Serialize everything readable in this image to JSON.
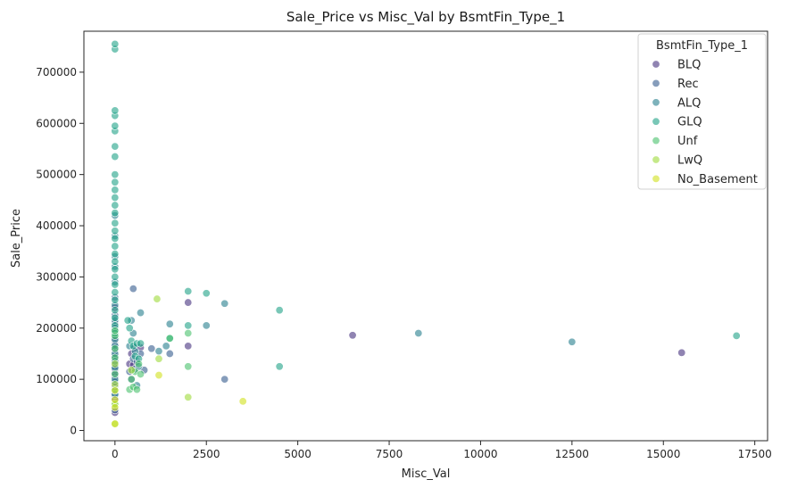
{
  "chart_data": {
    "type": "scatter",
    "title": "Sale_Price vs Misc_Val by BsmtFin_Type_1",
    "xlabel": "Misc_Val",
    "ylabel": "Sale_Price",
    "xlim": [
      -850,
      17850
    ],
    "ylim": [
      -20000,
      780000
    ],
    "xticks": [
      0,
      2500,
      5000,
      7500,
      10000,
      12500,
      15000,
      17500
    ],
    "xtick_labels": [
      "0",
      "2500",
      "5000",
      "7500",
      "10000",
      "12500",
      "15000",
      "17500"
    ],
    "yticks": [
      0,
      100000,
      200000,
      300000,
      400000,
      500000,
      600000,
      700000
    ],
    "ytick_labels": [
      "0",
      "100000",
      "200000",
      "300000",
      "400000",
      "500000",
      "600000",
      "700000"
    ],
    "grid": false,
    "legend_position": "top-right",
    "legend_title": "BsmtFin_Type_1",
    "series": [
      {
        "name": "BLQ",
        "color": "#46327e",
        "points": [
          [
            0,
            35000
          ],
          [
            0,
            62000
          ],
          [
            0,
            85000
          ],
          [
            0,
            105000
          ],
          [
            0,
            118000
          ],
          [
            0,
            128000
          ],
          [
            0,
            132000
          ],
          [
            0,
            140000
          ],
          [
            0,
            148000
          ],
          [
            0,
            155000
          ],
          [
            0,
            162000
          ],
          [
            0,
            175000
          ],
          [
            0,
            190000
          ],
          [
            0,
            210000
          ],
          [
            0,
            240000
          ],
          [
            400,
            130000
          ],
          [
            450,
            150000
          ],
          [
            500,
            128000
          ],
          [
            550,
            162000
          ],
          [
            700,
            162000
          ],
          [
            2000,
            250000
          ],
          [
            2000,
            165000
          ],
          [
            6500,
            186000
          ],
          [
            15500,
            152000
          ]
        ]
      },
      {
        "name": "Rec",
        "color": "#365c8d",
        "points": [
          [
            0,
            40000
          ],
          [
            0,
            72000
          ],
          [
            0,
            95000
          ],
          [
            0,
            112000
          ],
          [
            0,
            125000
          ],
          [
            0,
            138000
          ],
          [
            0,
            145000
          ],
          [
            0,
            158000
          ],
          [
            0,
            168000
          ],
          [
            0,
            182000
          ],
          [
            0,
            200000
          ],
          [
            0,
            225000
          ],
          [
            0,
            260000
          ],
          [
            400,
            115000
          ],
          [
            450,
            100000
          ],
          [
            500,
            140000
          ],
          [
            500,
            277000
          ],
          [
            550,
            120000
          ],
          [
            600,
            135000
          ],
          [
            700,
            150000
          ],
          [
            800,
            118000
          ],
          [
            1000,
            160000
          ],
          [
            1500,
            150000
          ],
          [
            3000,
            100000
          ]
        ]
      },
      {
        "name": "ALQ",
        "color": "#277f8e",
        "points": [
          [
            0,
            70000
          ],
          [
            0,
            100000
          ],
          [
            0,
            122000
          ],
          [
            0,
            135000
          ],
          [
            0,
            150000
          ],
          [
            0,
            165000
          ],
          [
            0,
            178000
          ],
          [
            0,
            195000
          ],
          [
            0,
            215000
          ],
          [
            0,
            245000
          ],
          [
            0,
            290000
          ],
          [
            0,
            320000
          ],
          [
            0,
            340000
          ],
          [
            0,
            380000
          ],
          [
            0,
            420000
          ],
          [
            400,
            165000
          ],
          [
            450,
            215000
          ],
          [
            500,
            190000
          ],
          [
            550,
            155000
          ],
          [
            600,
            88000
          ],
          [
            650,
            125000
          ],
          [
            700,
            230000
          ],
          [
            1200,
            155000
          ],
          [
            1400,
            165000
          ],
          [
            1500,
            208000
          ],
          [
            2500,
            205000
          ],
          [
            3000,
            248000
          ],
          [
            8300,
            190000
          ],
          [
            12500,
            173000
          ]
        ]
      },
      {
        "name": "GLQ",
        "color": "#1fa187",
        "points": [
          [
            0,
            190000
          ],
          [
            0,
            205000
          ],
          [
            0,
            220000
          ],
          [
            0,
            235000
          ],
          [
            0,
            255000
          ],
          [
            0,
            270000
          ],
          [
            0,
            285000
          ],
          [
            0,
            300000
          ],
          [
            0,
            315000
          ],
          [
            0,
            330000
          ],
          [
            0,
            345000
          ],
          [
            0,
            360000
          ],
          [
            0,
            375000
          ],
          [
            0,
            390000
          ],
          [
            0,
            405000
          ],
          [
            0,
            425000
          ],
          [
            0,
            440000
          ],
          [
            0,
            455000
          ],
          [
            0,
            470000
          ],
          [
            0,
            485000
          ],
          [
            0,
            500000
          ],
          [
            0,
            535000
          ],
          [
            0,
            555000
          ],
          [
            0,
            585000
          ],
          [
            0,
            595000
          ],
          [
            0,
            615000
          ],
          [
            0,
            625000
          ],
          [
            0,
            745000
          ],
          [
            0,
            755000
          ],
          [
            350,
            215000
          ],
          [
            400,
            200000
          ],
          [
            450,
            175000
          ],
          [
            500,
            165000
          ],
          [
            550,
            145000
          ],
          [
            600,
            170000
          ],
          [
            650,
            140000
          ],
          [
            700,
            170000
          ],
          [
            1500,
            180000
          ],
          [
            2000,
            272000
          ],
          [
            2000,
            205000
          ],
          [
            2500,
            268000
          ],
          [
            4500,
            235000
          ],
          [
            4500,
            125000
          ],
          [
            17000,
            185000
          ]
        ]
      },
      {
        "name": "Unf",
        "color": "#4ac16d",
        "points": [
          [
            0,
            50000
          ],
          [
            0,
            80000
          ],
          [
            0,
            110000
          ],
          [
            0,
            142000
          ],
          [
            0,
            160000
          ],
          [
            0,
            185000
          ],
          [
            0,
            195000
          ],
          [
            400,
            80000
          ],
          [
            450,
            100000
          ],
          [
            500,
            85000
          ],
          [
            550,
            115000
          ],
          [
            600,
            80000
          ],
          [
            650,
            130000
          ],
          [
            700,
            110000
          ],
          [
            2000,
            125000
          ],
          [
            2000,
            190000
          ],
          [
            1500,
            180000
          ]
        ]
      },
      {
        "name": "LwQ",
        "color": "#9fda3a",
        "points": [
          [
            0,
            13000
          ],
          [
            0,
            52000
          ],
          [
            0,
            90000
          ],
          [
            0,
            130000
          ],
          [
            450,
            118000
          ],
          [
            1150,
            257000
          ],
          [
            1200,
            140000
          ],
          [
            2000,
            65000
          ]
        ]
      },
      {
        "name": "No_Basement",
        "color": "#d1e11c",
        "points": [
          [
            0,
            13000
          ],
          [
            0,
            45000
          ],
          [
            0,
            60000
          ],
          [
            0,
            78000
          ],
          [
            1200,
            108000
          ],
          [
            3500,
            57000
          ]
        ]
      }
    ]
  }
}
